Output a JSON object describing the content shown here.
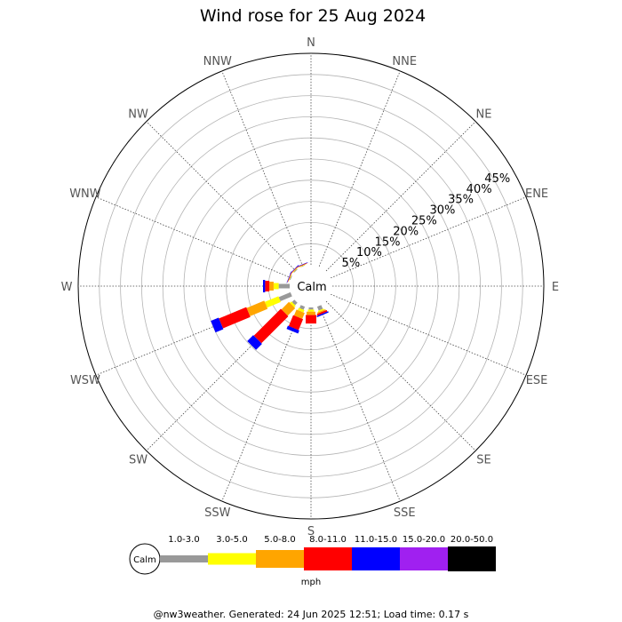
{
  "title": "Wind rose for 25 Aug 2024",
  "footer": "@nw3weather. Generated: 24 Jun 2025 12:51; Load time: 0.17 s",
  "calm_label": "Calm",
  "unit_label": "mph",
  "directions": [
    "N",
    "NNE",
    "NE",
    "ENE",
    "E",
    "ESE",
    "SE",
    "SSE",
    "S",
    "SSW",
    "SW",
    "WSW",
    "W",
    "WNW",
    "NW",
    "NNW"
  ],
  "ring_labels": [
    "5%",
    "10%",
    "15%",
    "20%",
    "25%",
    "30%",
    "35%",
    "40%",
    "45%"
  ],
  "speed_bins": [
    {
      "label": "1.0-3.0",
      "color": "#999999"
    },
    {
      "label": "3.0-5.0",
      "color": "#ffff00"
    },
    {
      "label": "5.0-8.0",
      "color": "#ffa500"
    },
    {
      "label": "8.0-11.0",
      "color": "#ff0000"
    },
    {
      "label": "11.0-15.0",
      "color": "#0000ff"
    },
    {
      "label": "15.0-20.0",
      "color": "#a020f0"
    },
    {
      "label": "20.0-50.0",
      "color": "#000000"
    }
  ],
  "chart_data": {
    "type": "wind-rose",
    "title": "Wind rose for 25 Aug 2024",
    "unit": "mph",
    "radial_max_percent": 50,
    "ring_step_percent": 5,
    "directions": [
      "N",
      "NNE",
      "NE",
      "ENE",
      "E",
      "ESE",
      "SE",
      "SSE",
      "S",
      "SSW",
      "SW",
      "WSW",
      "W",
      "WNW",
      "NW",
      "NNW"
    ],
    "series": [
      {
        "name": "1.0-3.0",
        "values": [
          0,
          0,
          0,
          0,
          0,
          0,
          0,
          1.0,
          0.5,
          0.8,
          0.8,
          3.0,
          2.6,
          0.2,
          0.2,
          0.1
        ]
      },
      {
        "name": "3.0-5.0",
        "values": [
          0,
          0,
          0,
          0,
          0,
          0,
          0,
          0.3,
          0.5,
          0.6,
          0.5,
          3.5,
          1.2,
          0.1,
          0.1,
          0.1
        ]
      },
      {
        "name": "5.0-8.0",
        "values": [
          0,
          0,
          0,
          0,
          0,
          0,
          0,
          0.3,
          0.8,
          1.5,
          2.5,
          4.5,
          1.0,
          0.1,
          0.1,
          0.1
        ]
      },
      {
        "name": "8.0-11.0",
        "values": [
          0,
          0,
          0,
          0,
          0,
          0,
          0,
          0.4,
          2.0,
          2.8,
          9.0,
          7.0,
          1.0,
          0.1,
          0.1,
          0.1
        ]
      },
      {
        "name": "11.0-15.0",
        "values": [
          0,
          0,
          0,
          0,
          0,
          0,
          0,
          0.3,
          0,
          0.8,
          2.0,
          2.0,
          0.5,
          0.1,
          0.1,
          0.1
        ]
      },
      {
        "name": "15.0-20.0",
        "values": [
          0,
          0,
          0,
          0,
          0,
          0,
          0,
          0,
          0,
          0,
          0,
          0,
          0,
          0,
          0,
          0
        ]
      },
      {
        "name": "20.0-50.0",
        "values": [
          0,
          0,
          0,
          0,
          0,
          0,
          0,
          0,
          0,
          0,
          0,
          0,
          0,
          0,
          0,
          0
        ]
      }
    ]
  }
}
